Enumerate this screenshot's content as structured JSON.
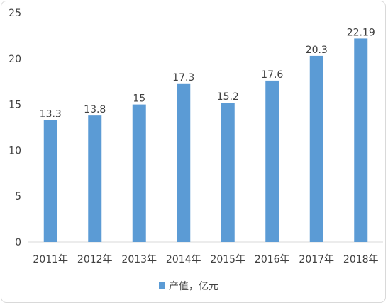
{
  "chart_data": {
    "type": "bar",
    "categories": [
      "2011年",
      "2012年",
      "2013年",
      "2014年",
      "2015年",
      "2016年",
      "2017年",
      "2018年"
    ],
    "series": [
      {
        "name": "产值，亿元",
        "values": [
          13.3,
          13.8,
          15,
          17.3,
          15.2,
          17.6,
          20.3,
          22.19
        ],
        "labels": [
          "13.3",
          "13.8",
          "15",
          "17.3",
          "15.2",
          "17.6",
          "20.3",
          "22.19"
        ],
        "color": "#5b9bd5"
      }
    ],
    "title": "",
    "xlabel": "",
    "ylabel": "",
    "ylim": [
      0,
      25
    ],
    "yticks": [
      0,
      5,
      10,
      15,
      20,
      25
    ],
    "grid": false,
    "legend_position": "bottom"
  }
}
